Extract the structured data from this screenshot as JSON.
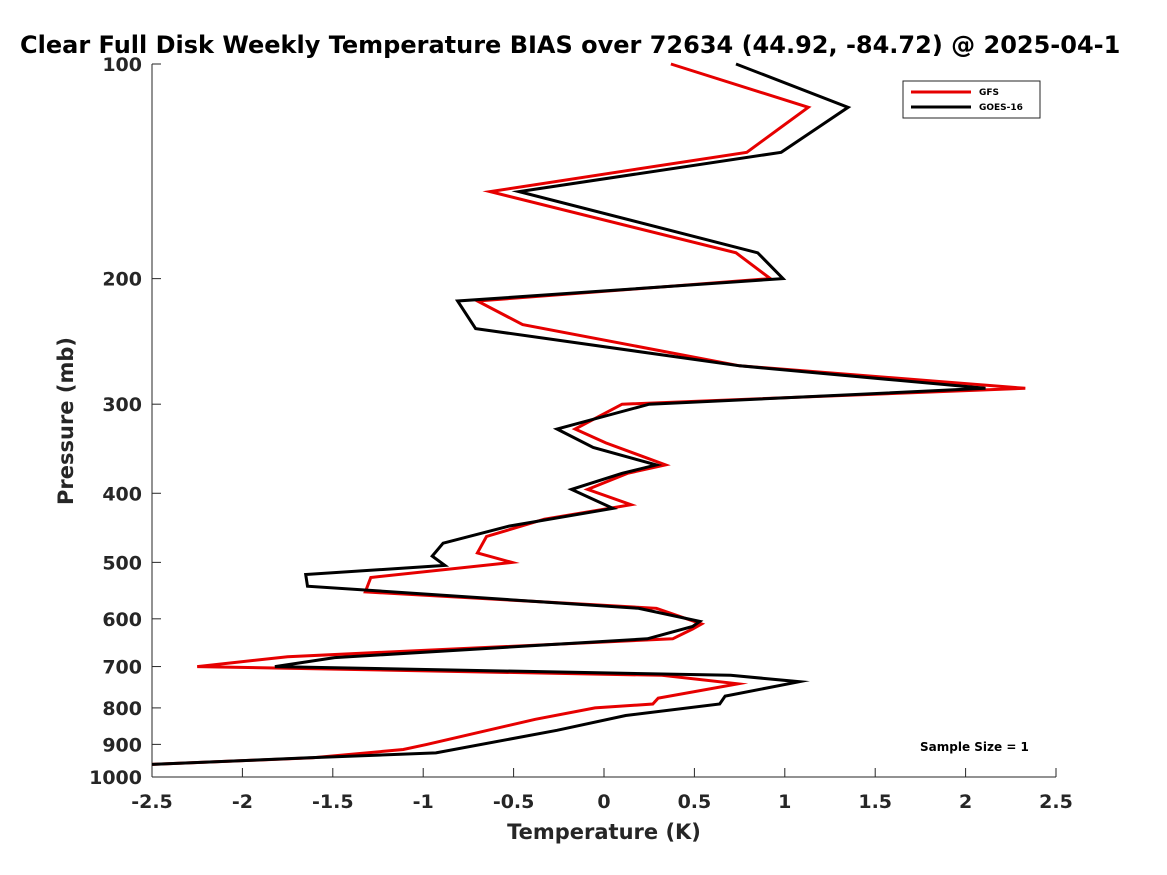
{
  "chart_data": {
    "type": "line",
    "title": "Clear Full Disk Weekly Temperature BIAS over 72634 (44.92, -84.72) @ 2025-04-1",
    "xlabel": "Temperature (K)",
    "ylabel": "Pressure (mb)",
    "xlim": [
      -2.5,
      2.5
    ],
    "ylim": [
      1000,
      100
    ],
    "y_scale": "log",
    "x_ticks": [
      -2.5,
      -2,
      -1.5,
      -1,
      -0.5,
      0,
      0.5,
      1,
      1.5,
      2,
      2.5
    ],
    "x_tick_labels": [
      "-2.5",
      "-2",
      "-1.5",
      "-1",
      "-0.5",
      "0",
      "0.5",
      "1",
      "1.5",
      "2",
      "2.5"
    ],
    "y_ticks": [
      100,
      200,
      300,
      400,
      500,
      600,
      700,
      800,
      900,
      1000
    ],
    "y_tick_labels": [
      "100",
      "200",
      "300",
      "400",
      "500",
      "600",
      "700",
      "800",
      "900",
      "1000"
    ],
    "legend_position": "top-right",
    "annotation": "Sample Size = 1",
    "series": [
      {
        "name": "GFS",
        "color": "#e60000",
        "points": [
          [
            0.37,
            100
          ],
          [
            1.13,
            115
          ],
          [
            0.79,
            133
          ],
          [
            -0.63,
            151
          ],
          [
            0.73,
            184
          ],
          [
            0.92,
            200
          ],
          [
            -0.7,
            215
          ],
          [
            -0.45,
            232
          ],
          [
            0.75,
            265
          ],
          [
            2.33,
            285
          ],
          [
            0.1,
            300
          ],
          [
            -0.16,
            325
          ],
          [
            0.01,
            340
          ],
          [
            0.34,
            365
          ],
          [
            0.13,
            375
          ],
          [
            -0.09,
            395
          ],
          [
            0.15,
            415
          ],
          [
            -0.33,
            435
          ],
          [
            -0.65,
            460
          ],
          [
            -0.7,
            485
          ],
          [
            -0.51,
            500
          ],
          [
            -1.29,
            525
          ],
          [
            -1.32,
            550
          ],
          [
            0.29,
            580
          ],
          [
            0.54,
            610
          ],
          [
            0.49,
            620
          ],
          [
            0.38,
            640
          ],
          [
            -1.75,
            678
          ],
          [
            -2.25,
            700
          ],
          [
            0.32,
            720
          ],
          [
            0.74,
            740
          ],
          [
            0.3,
            775
          ],
          [
            0.27,
            790
          ],
          [
            -0.05,
            800
          ],
          [
            -0.38,
            830
          ],
          [
            -0.98,
            900
          ],
          [
            -1.11,
            915
          ],
          [
            -1.61,
            940
          ],
          [
            -2.5,
            960
          ]
        ]
      },
      {
        "name": "GOES-16",
        "color": "#000000",
        "points": [
          [
            0.73,
            100
          ],
          [
            1.35,
            115
          ],
          [
            0.98,
            133
          ],
          [
            -0.47,
            151
          ],
          [
            0.85,
            184
          ],
          [
            0.99,
            200
          ],
          [
            -0.81,
            215
          ],
          [
            -0.71,
            235
          ],
          [
            0.75,
            265
          ],
          [
            2.11,
            285
          ],
          [
            0.25,
            300
          ],
          [
            -0.26,
            325
          ],
          [
            -0.06,
            345
          ],
          [
            0.29,
            365
          ],
          [
            0.1,
            375
          ],
          [
            -0.18,
            395
          ],
          [
            0.05,
            420
          ],
          [
            -0.53,
            445
          ],
          [
            -0.89,
            470
          ],
          [
            -0.95,
            490
          ],
          [
            -0.88,
            505
          ],
          [
            -1.65,
            520
          ],
          [
            -1.64,
            540
          ],
          [
            0.19,
            580
          ],
          [
            0.53,
            605
          ],
          [
            0.49,
            615
          ],
          [
            0.24,
            640
          ],
          [
            -1.49,
            680
          ],
          [
            -1.82,
            700
          ],
          [
            0.7,
            720
          ],
          [
            1.08,
            735
          ],
          [
            0.67,
            770
          ],
          [
            0.64,
            790
          ],
          [
            0.12,
            820
          ],
          [
            -0.26,
            860
          ],
          [
            -0.93,
            925
          ],
          [
            -1.63,
            940
          ],
          [
            -2.5,
            960
          ]
        ]
      }
    ]
  }
}
